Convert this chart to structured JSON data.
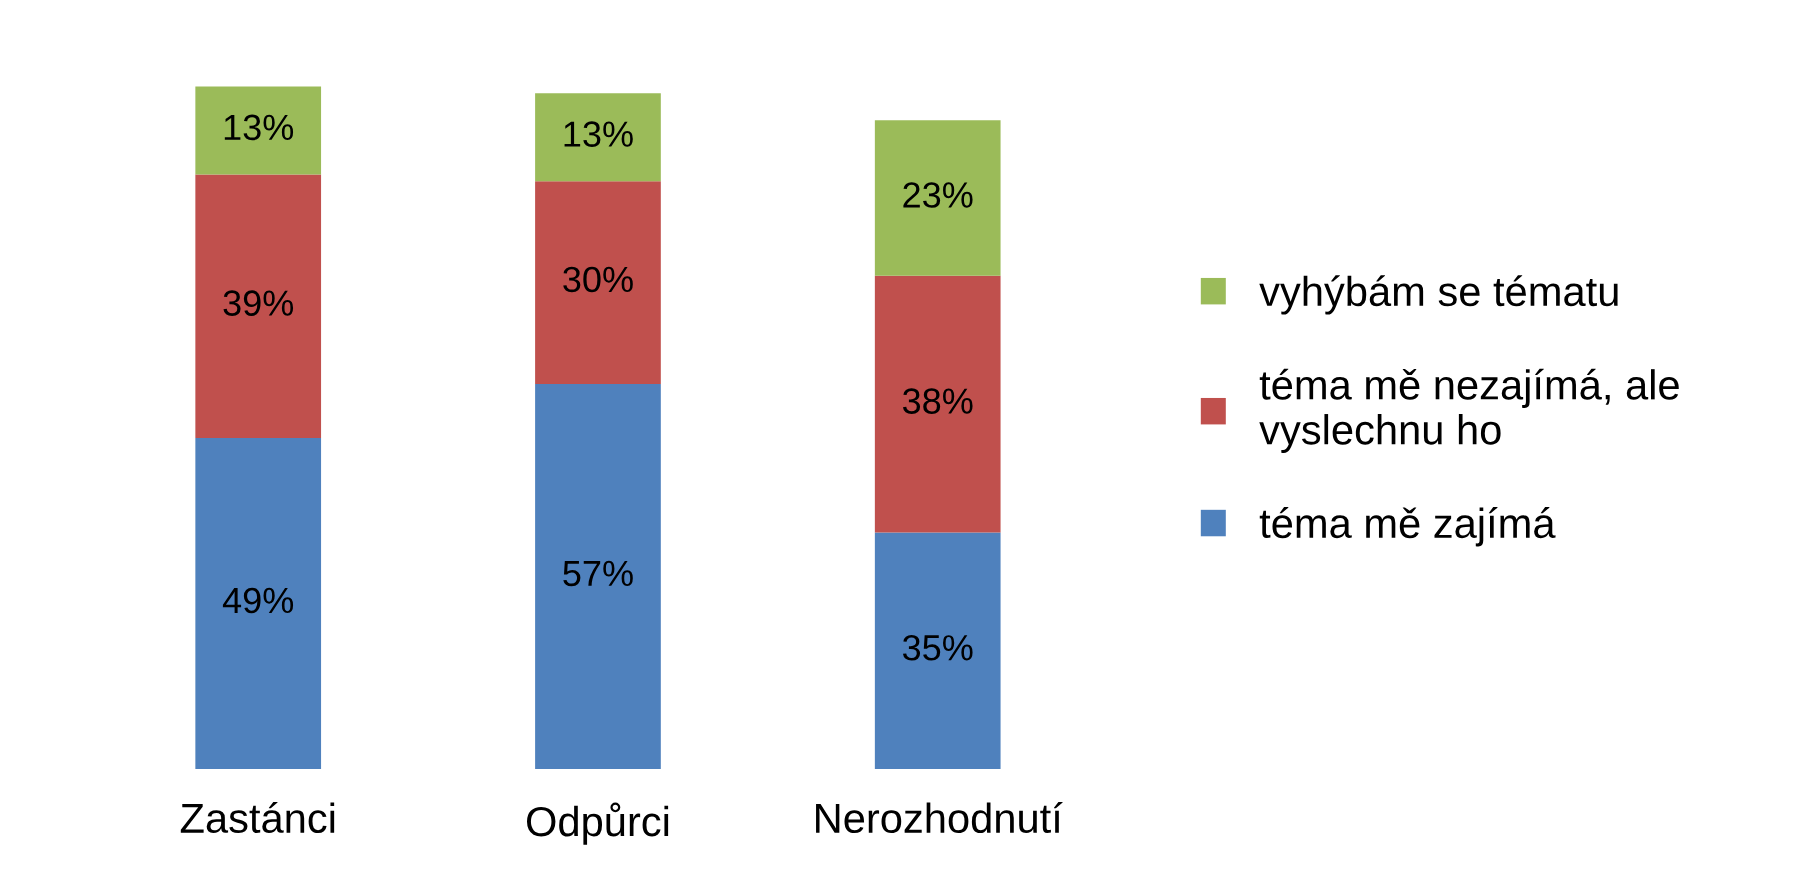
{
  "chart_data": {
    "type": "bar",
    "stacked": true,
    "legend": "right",
    "categories": [
      "Zastánci",
      "Odpůrci",
      "Nerozhodnutí"
    ],
    "series": [
      {
        "name": "téma mě zajímá",
        "color": "#4f81bd",
        "values": [
          49,
          57,
          35
        ],
        "value_labels": [
          "49%",
          "57%",
          "35%"
        ]
      },
      {
        "name": "téma mě nezajímá, ale\nvyslechnu ho",
        "color": "#c0504d",
        "values": [
          39,
          30,
          38
        ],
        "value_labels": [
          "39%",
          "30%",
          "38%"
        ]
      },
      {
        "name": "vyhýbám se tématu",
        "color": "#9bbb59",
        "values": [
          13,
          13,
          23
        ],
        "value_labels": [
          "13%",
          "13%",
          "23%"
        ]
      }
    ]
  }
}
